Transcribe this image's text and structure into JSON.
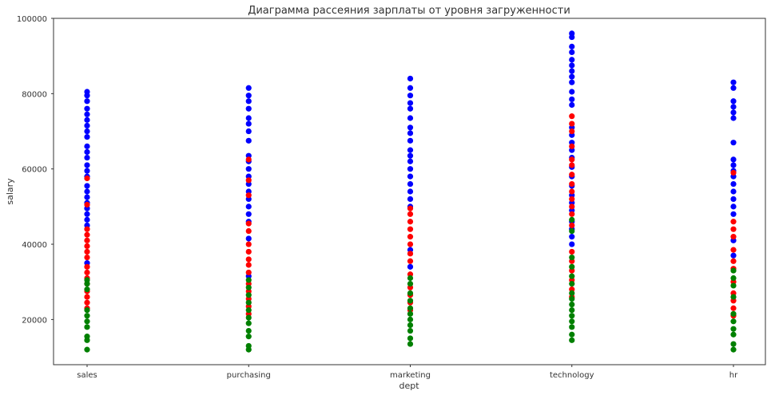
{
  "chart_data": {
    "type": "scatter",
    "title": "Диаграмма рассеяния зарплаты от уровня загруженности",
    "xlabel": "dept",
    "ylabel": "salary",
    "categories": [
      "sales",
      "purchasing",
      "marketing",
      "technology",
      "hr"
    ],
    "ylim": [
      8000,
      100000
    ],
    "yticks": [
      20000,
      40000,
      60000,
      80000,
      100000
    ],
    "ytick_labels": [
      "20000",
      "40000",
      "60000",
      "80000",
      "100000"
    ],
    "grid": false,
    "legend": "none",
    "colors": {
      "low": "#008000",
      "medium": "#ff0000",
      "high": "#0000ff"
    },
    "series": [
      {
        "color": "#0000ff",
        "points": [
          {
            "x": "sales",
            "y": 35000
          },
          {
            "x": "sales",
            "y": 45000
          },
          {
            "x": "sales",
            "y": 46500
          },
          {
            "x": "sales",
            "y": 48000
          },
          {
            "x": "sales",
            "y": 49500
          },
          {
            "x": "sales",
            "y": 51000
          },
          {
            "x": "sales",
            "y": 52500
          },
          {
            "x": "sales",
            "y": 54000
          },
          {
            "x": "sales",
            "y": 55500
          },
          {
            "x": "sales",
            "y": 58000
          },
          {
            "x": "sales",
            "y": 59500
          },
          {
            "x": "sales",
            "y": 61000
          },
          {
            "x": "sales",
            "y": 63000
          },
          {
            "x": "sales",
            "y": 64500
          },
          {
            "x": "sales",
            "y": 66000
          },
          {
            "x": "sales",
            "y": 68500
          },
          {
            "x": "sales",
            "y": 70000
          },
          {
            "x": "sales",
            "y": 71500
          },
          {
            "x": "sales",
            "y": 73000
          },
          {
            "x": "sales",
            "y": 74500
          },
          {
            "x": "sales",
            "y": 76000
          },
          {
            "x": "sales",
            "y": 78000
          },
          {
            "x": "sales",
            "y": 79500
          },
          {
            "x": "sales",
            "y": 80500
          },
          {
            "x": "purchasing",
            "y": 31500
          },
          {
            "x": "purchasing",
            "y": 41500
          },
          {
            "x": "purchasing",
            "y": 46000
          },
          {
            "x": "purchasing",
            "y": 48000
          },
          {
            "x": "purchasing",
            "y": 50000
          },
          {
            "x": "purchasing",
            "y": 52000
          },
          {
            "x": "purchasing",
            "y": 54000
          },
          {
            "x": "purchasing",
            "y": 56000
          },
          {
            "x": "purchasing",
            "y": 58000
          },
          {
            "x": "purchasing",
            "y": 60000
          },
          {
            "x": "purchasing",
            "y": 62000
          },
          {
            "x": "purchasing",
            "y": 63500
          },
          {
            "x": "purchasing",
            "y": 67500
          },
          {
            "x": "purchasing",
            "y": 70000
          },
          {
            "x": "purchasing",
            "y": 72000
          },
          {
            "x": "purchasing",
            "y": 73500
          },
          {
            "x": "purchasing",
            "y": 76000
          },
          {
            "x": "purchasing",
            "y": 78000
          },
          {
            "x": "purchasing",
            "y": 79500
          },
          {
            "x": "purchasing",
            "y": 81500
          },
          {
            "x": "marketing",
            "y": 34000
          },
          {
            "x": "marketing",
            "y": 38500
          },
          {
            "x": "marketing",
            "y": 50000
          },
          {
            "x": "marketing",
            "y": 52000
          },
          {
            "x": "marketing",
            "y": 54000
          },
          {
            "x": "marketing",
            "y": 56000
          },
          {
            "x": "marketing",
            "y": 58000
          },
          {
            "x": "marketing",
            "y": 60000
          },
          {
            "x": "marketing",
            "y": 62000
          },
          {
            "x": "marketing",
            "y": 63500
          },
          {
            "x": "marketing",
            "y": 65000
          },
          {
            "x": "marketing",
            "y": 67500
          },
          {
            "x": "marketing",
            "y": 69500
          },
          {
            "x": "marketing",
            "y": 71000
          },
          {
            "x": "marketing",
            "y": 73500
          },
          {
            "x": "marketing",
            "y": 76000
          },
          {
            "x": "marketing",
            "y": 77500
          },
          {
            "x": "marketing",
            "y": 79500
          },
          {
            "x": "marketing",
            "y": 81500
          },
          {
            "x": "marketing",
            "y": 84000
          },
          {
            "x": "technology",
            "y": 40000
          },
          {
            "x": "technology",
            "y": 42000
          },
          {
            "x": "technology",
            "y": 44000
          },
          {
            "x": "technology",
            "y": 46000
          },
          {
            "x": "technology",
            "y": 49000
          },
          {
            "x": "technology",
            "y": 51000
          },
          {
            "x": "technology",
            "y": 53000
          },
          {
            "x": "technology",
            "y": 55500
          },
          {
            "x": "technology",
            "y": 58000
          },
          {
            "x": "technology",
            "y": 60500
          },
          {
            "x": "technology",
            "y": 63000
          },
          {
            "x": "technology",
            "y": 65000
          },
          {
            "x": "technology",
            "y": 67000
          },
          {
            "x": "technology",
            "y": 69000
          },
          {
            "x": "technology",
            "y": 71000
          },
          {
            "x": "technology",
            "y": 77000
          },
          {
            "x": "technology",
            "y": 78500
          },
          {
            "x": "technology",
            "y": 80500
          },
          {
            "x": "technology",
            "y": 83000
          },
          {
            "x": "technology",
            "y": 84500
          },
          {
            "x": "technology",
            "y": 86000
          },
          {
            "x": "technology",
            "y": 87500
          },
          {
            "x": "technology",
            "y": 89000
          },
          {
            "x": "technology",
            "y": 91000
          },
          {
            "x": "technology",
            "y": 92500
          },
          {
            "x": "technology",
            "y": 95000
          },
          {
            "x": "technology",
            "y": 96000
          },
          {
            "x": "hr",
            "y": 37000
          },
          {
            "x": "hr",
            "y": 41000
          },
          {
            "x": "hr",
            "y": 48000
          },
          {
            "x": "hr",
            "y": 50000
          },
          {
            "x": "hr",
            "y": 52000
          },
          {
            "x": "hr",
            "y": 54000
          },
          {
            "x": "hr",
            "y": 56000
          },
          {
            "x": "hr",
            "y": 58000
          },
          {
            "x": "hr",
            "y": 59500
          },
          {
            "x": "hr",
            "y": 61000
          },
          {
            "x": "hr",
            "y": 62500
          },
          {
            "x": "hr",
            "y": 67000
          },
          {
            "x": "hr",
            "y": 73500
          },
          {
            "x": "hr",
            "y": 75000
          },
          {
            "x": "hr",
            "y": 76500
          },
          {
            "x": "hr",
            "y": 78000
          },
          {
            "x": "hr",
            "y": 81500
          },
          {
            "x": "hr",
            "y": 83000
          }
        ]
      },
      {
        "color": "#ff0000",
        "points": [
          {
            "x": "sales",
            "y": 23000
          },
          {
            "x": "sales",
            "y": 24500
          },
          {
            "x": "sales",
            "y": 26000
          },
          {
            "x": "sales",
            "y": 27500
          },
          {
            "x": "sales",
            "y": 29500
          },
          {
            "x": "sales",
            "y": 31000
          },
          {
            "x": "sales",
            "y": 32500
          },
          {
            "x": "sales",
            "y": 34000
          },
          {
            "x": "sales",
            "y": 36500
          },
          {
            "x": "sales",
            "y": 38000
          },
          {
            "x": "sales",
            "y": 39500
          },
          {
            "x": "sales",
            "y": 41000
          },
          {
            "x": "sales",
            "y": 42500
          },
          {
            "x": "sales",
            "y": 44000
          },
          {
            "x": "sales",
            "y": 50500
          },
          {
            "x": "sales",
            "y": 57500
          },
          {
            "x": "purchasing",
            "y": 21500
          },
          {
            "x": "purchasing",
            "y": 23500
          },
          {
            "x": "purchasing",
            "y": 25500
          },
          {
            "x": "purchasing",
            "y": 27500
          },
          {
            "x": "purchasing",
            "y": 29500
          },
          {
            "x": "purchasing",
            "y": 32500
          },
          {
            "x": "purchasing",
            "y": 34500
          },
          {
            "x": "purchasing",
            "y": 36000
          },
          {
            "x": "purchasing",
            "y": 38000
          },
          {
            "x": "purchasing",
            "y": 40000
          },
          {
            "x": "purchasing",
            "y": 43500
          },
          {
            "x": "purchasing",
            "y": 45500
          },
          {
            "x": "purchasing",
            "y": 53000
          },
          {
            "x": "purchasing",
            "y": 57000
          },
          {
            "x": "purchasing",
            "y": 62500
          },
          {
            "x": "marketing",
            "y": 22500
          },
          {
            "x": "marketing",
            "y": 24500
          },
          {
            "x": "marketing",
            "y": 26500
          },
          {
            "x": "marketing",
            "y": 28500
          },
          {
            "x": "marketing",
            "y": 32000
          },
          {
            "x": "marketing",
            "y": 35500
          },
          {
            "x": "marketing",
            "y": 37500
          },
          {
            "x": "marketing",
            "y": 40000
          },
          {
            "x": "marketing",
            "y": 42000
          },
          {
            "x": "marketing",
            "y": 44000
          },
          {
            "x": "marketing",
            "y": 46000
          },
          {
            "x": "marketing",
            "y": 48000
          },
          {
            "x": "marketing",
            "y": 49500
          },
          {
            "x": "technology",
            "y": 26000
          },
          {
            "x": "technology",
            "y": 28000
          },
          {
            "x": "technology",
            "y": 30500
          },
          {
            "x": "technology",
            "y": 33000
          },
          {
            "x": "technology",
            "y": 35500
          },
          {
            "x": "technology",
            "y": 38000
          },
          {
            "x": "technology",
            "y": 45000
          },
          {
            "x": "technology",
            "y": 48000
          },
          {
            "x": "technology",
            "y": 50000
          },
          {
            "x": "technology",
            "y": 52000
          },
          {
            "x": "technology",
            "y": 54000
          },
          {
            "x": "technology",
            "y": 56000
          },
          {
            "x": "technology",
            "y": 58500
          },
          {
            "x": "technology",
            "y": 61000
          },
          {
            "x": "technology",
            "y": 62500
          },
          {
            "x": "technology",
            "y": 66000
          },
          {
            "x": "technology",
            "y": 70000
          },
          {
            "x": "technology",
            "y": 72000
          },
          {
            "x": "technology",
            "y": 74000
          },
          {
            "x": "hr",
            "y": 21000
          },
          {
            "x": "hr",
            "y": 23000
          },
          {
            "x": "hr",
            "y": 25000
          },
          {
            "x": "hr",
            "y": 27000
          },
          {
            "x": "hr",
            "y": 30000
          },
          {
            "x": "hr",
            "y": 33500
          },
          {
            "x": "hr",
            "y": 35500
          },
          {
            "x": "hr",
            "y": 38500
          },
          {
            "x": "hr",
            "y": 42000
          },
          {
            "x": "hr",
            "y": 44000
          },
          {
            "x": "hr",
            "y": 46000
          },
          {
            "x": "hr",
            "y": 59000
          }
        ]
      },
      {
        "color": "#008000",
        "points": [
          {
            "x": "sales",
            "y": 12000
          },
          {
            "x": "sales",
            "y": 14500
          },
          {
            "x": "sales",
            "y": 15500
          },
          {
            "x": "sales",
            "y": 18000
          },
          {
            "x": "sales",
            "y": 19500
          },
          {
            "x": "sales",
            "y": 21000
          },
          {
            "x": "sales",
            "y": 22500
          },
          {
            "x": "sales",
            "y": 28000
          },
          {
            "x": "sales",
            "y": 29500
          },
          {
            "x": "sales",
            "y": 30500
          },
          {
            "x": "purchasing",
            "y": 12000
          },
          {
            "x": "purchasing",
            "y": 13000
          },
          {
            "x": "purchasing",
            "y": 15500
          },
          {
            "x": "purchasing",
            "y": 17000
          },
          {
            "x": "purchasing",
            "y": 19000
          },
          {
            "x": "purchasing",
            "y": 20500
          },
          {
            "x": "purchasing",
            "y": 22500
          },
          {
            "x": "purchasing",
            "y": 24500
          },
          {
            "x": "purchasing",
            "y": 26500
          },
          {
            "x": "purchasing",
            "y": 28500
          },
          {
            "x": "purchasing",
            "y": 30500
          },
          {
            "x": "marketing",
            "y": 13500
          },
          {
            "x": "marketing",
            "y": 15000
          },
          {
            "x": "marketing",
            "y": 17000
          },
          {
            "x": "marketing",
            "y": 18500
          },
          {
            "x": "marketing",
            "y": 20000
          },
          {
            "x": "marketing",
            "y": 21500
          },
          {
            "x": "marketing",
            "y": 23000
          },
          {
            "x": "marketing",
            "y": 25000
          },
          {
            "x": "marketing",
            "y": 27000
          },
          {
            "x": "marketing",
            "y": 29500
          },
          {
            "x": "marketing",
            "y": 31000
          },
          {
            "x": "technology",
            "y": 14500
          },
          {
            "x": "technology",
            "y": 16000
          },
          {
            "x": "technology",
            "y": 18000
          },
          {
            "x": "technology",
            "y": 19500
          },
          {
            "x": "technology",
            "y": 21000
          },
          {
            "x": "technology",
            "y": 22500
          },
          {
            "x": "technology",
            "y": 24000
          },
          {
            "x": "technology",
            "y": 25500
          },
          {
            "x": "technology",
            "y": 27000
          },
          {
            "x": "technology",
            "y": 29500
          },
          {
            "x": "technology",
            "y": 31500
          },
          {
            "x": "technology",
            "y": 34000
          },
          {
            "x": "technology",
            "y": 36500
          },
          {
            "x": "technology",
            "y": 43500
          },
          {
            "x": "technology",
            "y": 46500
          },
          {
            "x": "hr",
            "y": 12000
          },
          {
            "x": "hr",
            "y": 13500
          },
          {
            "x": "hr",
            "y": 16000
          },
          {
            "x": "hr",
            "y": 17500
          },
          {
            "x": "hr",
            "y": 19500
          },
          {
            "x": "hr",
            "y": 21500
          },
          {
            "x": "hr",
            "y": 26000
          },
          {
            "x": "hr",
            "y": 29000
          },
          {
            "x": "hr",
            "y": 31000
          },
          {
            "x": "hr",
            "y": 33000
          }
        ]
      }
    ]
  }
}
